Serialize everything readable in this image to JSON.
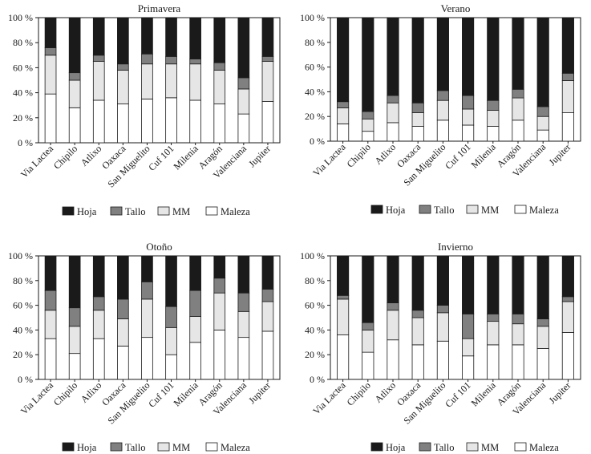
{
  "chart_data": [
    {
      "type": "bar",
      "stacked": true,
      "percent": true,
      "title": "Primavera",
      "categories": [
        "Via Lactea",
        "Chipilo",
        "Atlixo",
        "Oaxaca",
        "San Miguelito",
        "Cuf 101",
        "Milenia",
        "Aragón",
        "Valenciana",
        "Jupiter"
      ],
      "ylim": [
        0,
        100
      ],
      "yticks": [
        "0 %",
        "20 %",
        "40 %",
        "60 %",
        "80 %",
        "100 %"
      ],
      "legend_position": "bottom",
      "series": [
        {
          "name": "Maleza",
          "color": "#ffffff",
          "values": [
            39,
            28,
            34,
            31,
            35,
            36,
            34,
            31,
            23,
            33
          ]
        },
        {
          "name": "MM",
          "color": "#e6e6e6",
          "values": [
            31,
            22,
            31,
            27,
            28,
            27,
            29,
            27,
            20,
            32
          ]
        },
        {
          "name": "Tallo",
          "color": "#808080",
          "values": [
            6,
            6,
            5,
            5,
            8,
            6,
            4,
            6,
            9,
            4
          ]
        },
        {
          "name": "Hoja",
          "color": "#1a1a1a",
          "values": [
            24,
            44,
            30,
            37,
            29,
            31,
            33,
            36,
            48,
            31
          ]
        }
      ]
    },
    {
      "type": "bar",
      "stacked": true,
      "percent": true,
      "title": "Verano",
      "categories": [
        "Via Lactea",
        "Chipilo",
        "Atlixo",
        "Oaxaca",
        "San Miguelito",
        "Cuf 101",
        "Milenia",
        "Aragón",
        "Valenciana",
        "Jupiter"
      ],
      "ylim": [
        0,
        100
      ],
      "yticks": [
        "0 %",
        "20 %",
        "40 %",
        "60 %",
        "80 %",
        "100 %"
      ],
      "legend_position": "bottom",
      "series": [
        {
          "name": "Maleza",
          "color": "#ffffff",
          "values": [
            14,
            8,
            15,
            12,
            17,
            13,
            12,
            17,
            9,
            23
          ]
        },
        {
          "name": "MM",
          "color": "#e6e6e6",
          "values": [
            13,
            10,
            16,
            11,
            16,
            13,
            13,
            18,
            11,
            26
          ]
        },
        {
          "name": "Tallo",
          "color": "#808080",
          "values": [
            5,
            6,
            6,
            8,
            8,
            11,
            8,
            7,
            8,
            6
          ]
        },
        {
          "name": "Hoja",
          "color": "#1a1a1a",
          "values": [
            68,
            76,
            63,
            69,
            59,
            63,
            67,
            58,
            72,
            45
          ]
        }
      ]
    },
    {
      "type": "bar",
      "stacked": true,
      "percent": true,
      "title": "Otoño",
      "categories": [
        "Via Lactea",
        "Chipilo",
        "Atlixo",
        "Oaxaca",
        "San Miguelito",
        "Cuf 101",
        "Milenia",
        "Aragón",
        "Valenciana",
        "Jupiter"
      ],
      "ylim": [
        0,
        100
      ],
      "yticks": [
        "0 %",
        "20 %",
        "40 %",
        "60 %",
        "80 %",
        "100 %"
      ],
      "legend_position": "bottom",
      "series": [
        {
          "name": "Maleza",
          "color": "#ffffff",
          "values": [
            33,
            21,
            33,
            27,
            34,
            20,
            30,
            40,
            34,
            39
          ]
        },
        {
          "name": "MM",
          "color": "#e6e6e6",
          "values": [
            23,
            22,
            23,
            22,
            31,
            22,
            21,
            30,
            21,
            24
          ]
        },
        {
          "name": "Tallo",
          "color": "#808080",
          "values": [
            16,
            15,
            11,
            16,
            14,
            17,
            21,
            12,
            15,
            10
          ]
        },
        {
          "name": "Hoja",
          "color": "#1a1a1a",
          "values": [
            28,
            42,
            33,
            35,
            21,
            41,
            28,
            18,
            30,
            27
          ]
        }
      ]
    },
    {
      "type": "bar",
      "stacked": true,
      "percent": true,
      "title": "Invierno",
      "categories": [
        "Via Lactea",
        "Chipilo",
        "Atlixo",
        "Oaxaca",
        "San Miguelito",
        "Cuf 101",
        "Milenia",
        "Aragón",
        "Valenciana",
        "Jupiter"
      ],
      "ylim": [
        0,
        100
      ],
      "yticks": [
        "0 %",
        "20 %",
        "40 %",
        "60 %",
        "80 %",
        "100 %"
      ],
      "legend_position": "bottom",
      "series": [
        {
          "name": "Maleza",
          "color": "#ffffff",
          "values": [
            36,
            22,
            32,
            28,
            31,
            19,
            28,
            28,
            25,
            38
          ]
        },
        {
          "name": "MM",
          "color": "#e6e6e6",
          "values": [
            29,
            18,
            24,
            22,
            23,
            14,
            19,
            17,
            18,
            25
          ]
        },
        {
          "name": "Tallo",
          "color": "#808080",
          "values": [
            3,
            6,
            6,
            6,
            6,
            20,
            6,
            8,
            6,
            4
          ]
        },
        {
          "name": "Hoja",
          "color": "#1a1a1a",
          "values": [
            32,
            54,
            38,
            44,
            40,
            47,
            47,
            47,
            51,
            33
          ]
        }
      ]
    }
  ],
  "legend_order": [
    "Hoja",
    "Tallo",
    "MM",
    "Maleza"
  ]
}
